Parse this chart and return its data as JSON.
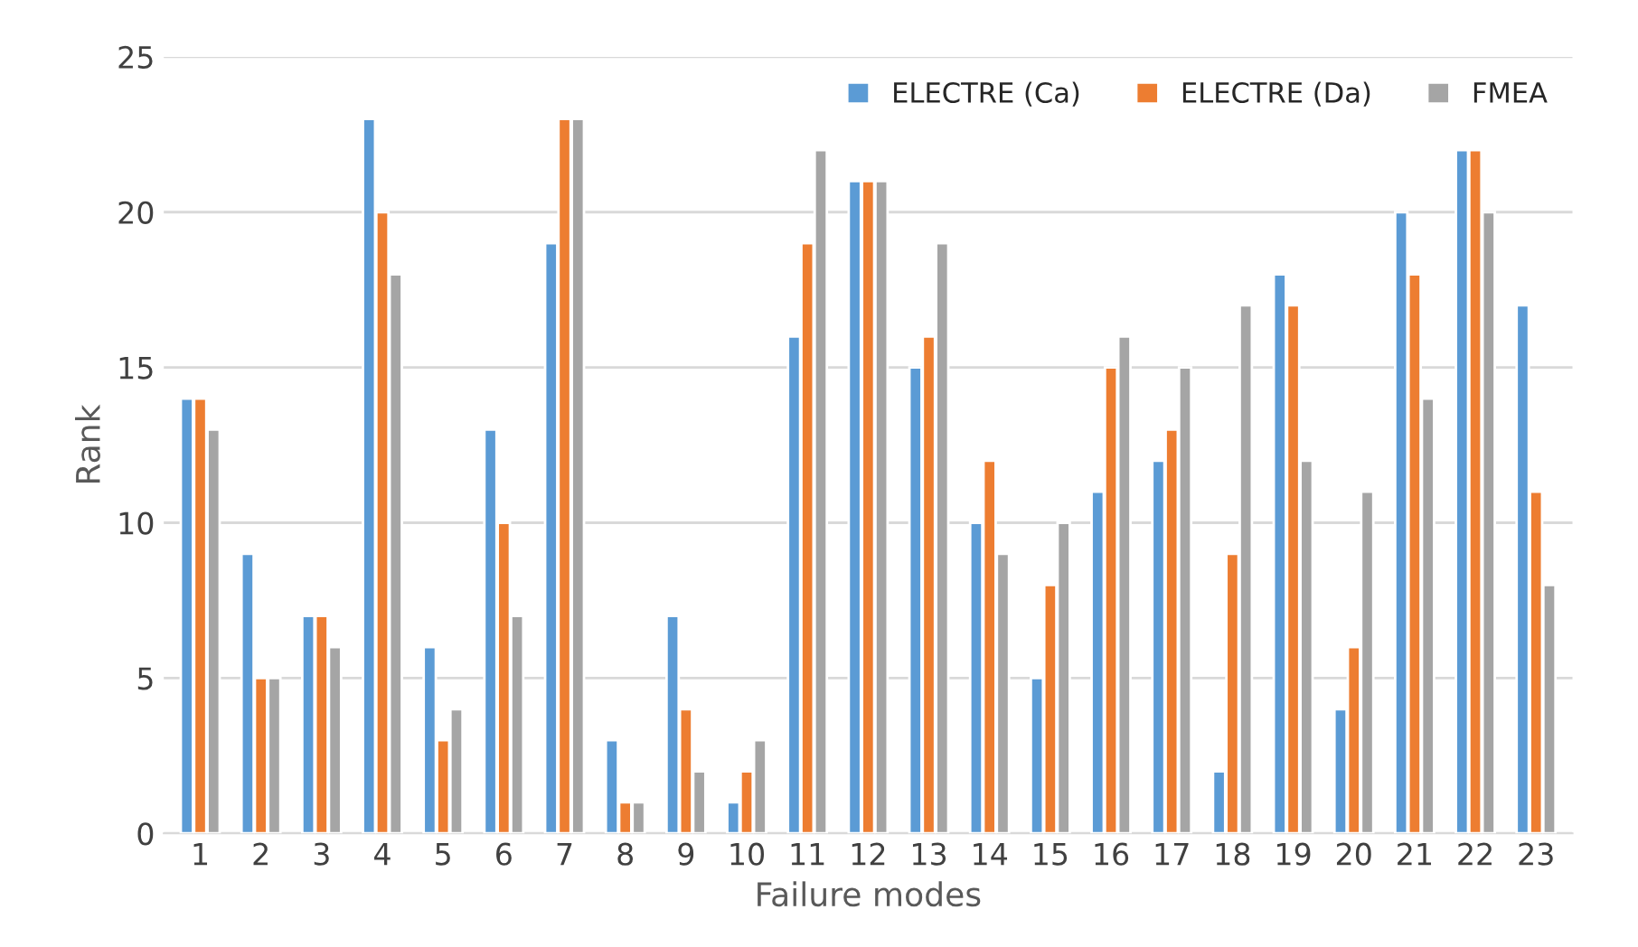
{
  "chart_data": {
    "type": "bar",
    "xlabel": "Failure modes",
    "ylabel": "Rank",
    "categories": [
      "1",
      "2",
      "3",
      "4",
      "5",
      "6",
      "7",
      "8",
      "9",
      "10",
      "11",
      "12",
      "13",
      "14",
      "15",
      "16",
      "17",
      "18",
      "19",
      "20",
      "21",
      "22",
      "23"
    ],
    "series": [
      {
        "name": "ELECTRE (Ca)",
        "color": "#5b9bd5",
        "values": [
          14,
          9,
          7,
          23,
          6,
          13,
          19,
          3,
          7,
          1,
          16,
          21,
          15,
          10,
          5,
          11,
          12,
          2,
          18,
          4,
          20,
          22,
          17
        ]
      },
      {
        "name": "ELECTRE (Da)",
        "color": "#ed7d31",
        "values": [
          14,
          5,
          7,
          20,
          3,
          10,
          23,
          1,
          4,
          2,
          19,
          21,
          16,
          12,
          8,
          15,
          13,
          9,
          17,
          6,
          18,
          22,
          11
        ]
      },
      {
        "name": "FMEA",
        "color": "#a5a5a5",
        "values": [
          13,
          5,
          6,
          18,
          4,
          7,
          23,
          1,
          2,
          3,
          22,
          21,
          19,
          9,
          10,
          16,
          15,
          17,
          12,
          11,
          14,
          20,
          8
        ]
      }
    ],
    "ylim": [
      0,
      25
    ],
    "yticks": [
      0,
      5,
      10,
      15,
      20,
      25
    ],
    "grid": "y",
    "legend": "top right"
  }
}
